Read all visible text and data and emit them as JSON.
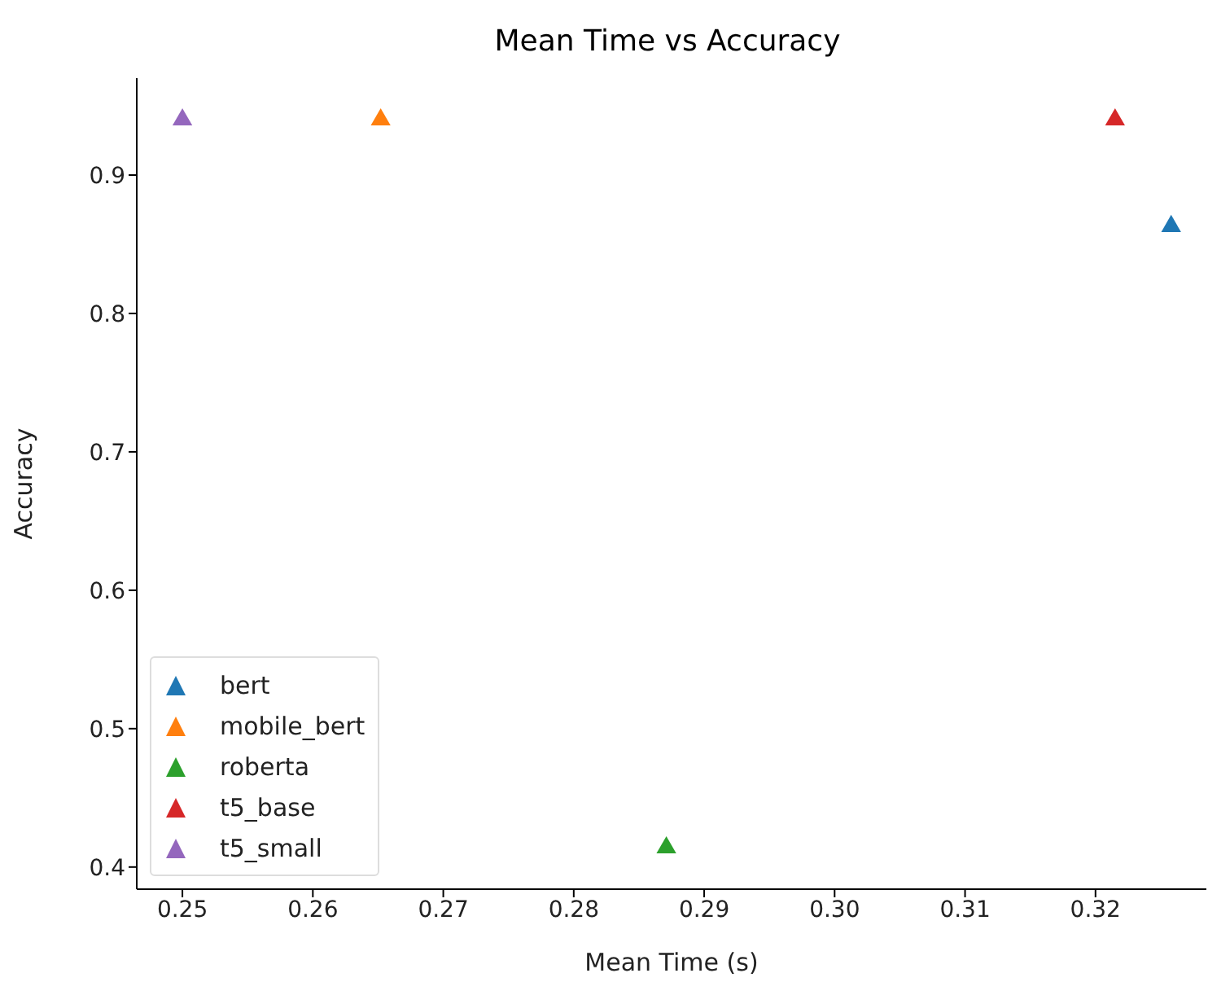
{
  "chart_data": {
    "type": "scatter",
    "title": "Mean Time vs Accuracy",
    "xlabel": "Mean Time (s)",
    "ylabel": "Accuracy",
    "series": [
      {
        "name": "bert",
        "color": "#1f77b4",
        "x": [
          0.3258
        ],
        "values": [
          0.863
        ]
      },
      {
        "name": "mobile_bert",
        "color": "#ff7f0e",
        "x": [
          0.2652
        ],
        "values": [
          0.94
        ]
      },
      {
        "name": "roberta",
        "color": "#2ca02c",
        "x": [
          0.2871
        ],
        "values": [
          0.414
        ]
      },
      {
        "name": "t5_base",
        "color": "#d62728",
        "x": [
          0.3215
        ],
        "values": [
          0.94
        ]
      },
      {
        "name": "t5_small",
        "color": "#9467bd",
        "x": [
          0.25
        ],
        "values": [
          0.94
        ]
      }
    ],
    "xlim": [
      0.2465,
      0.3285
    ],
    "xticks": [
      {
        "value": 0.25,
        "label": "0.25"
      },
      {
        "value": 0.26,
        "label": "0.26"
      },
      {
        "value": 0.27,
        "label": "0.27"
      },
      {
        "value": 0.28,
        "label": "0.28"
      },
      {
        "value": 0.29,
        "label": "0.29"
      },
      {
        "value": 0.3,
        "label": "0.30"
      },
      {
        "value": 0.31,
        "label": "0.31"
      },
      {
        "value": 0.32,
        "label": "0.32"
      }
    ],
    "ylim": [
      0.384,
      0.97
    ],
    "yticks": [
      0.4,
      0.5,
      0.6,
      0.7,
      0.8,
      0.9
    ],
    "grid": false,
    "legend": "bottom left",
    "marker": "triangle"
  }
}
